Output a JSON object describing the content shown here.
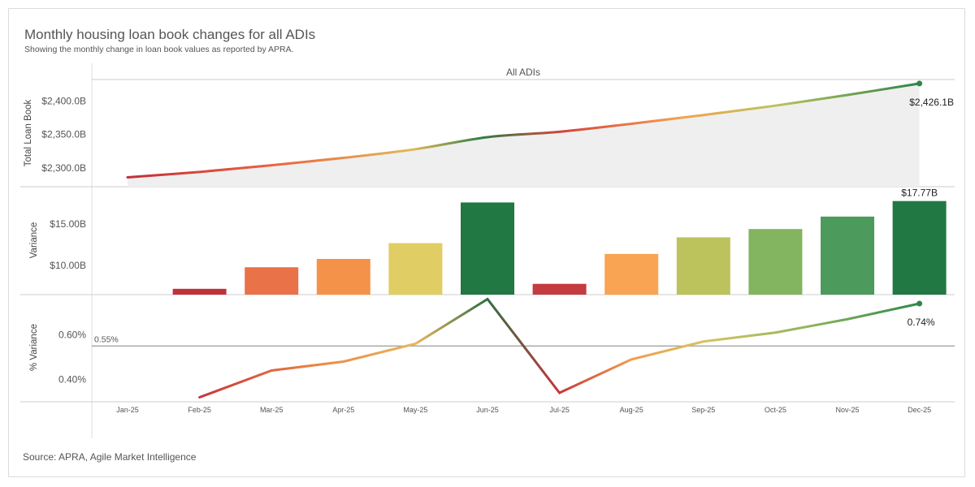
{
  "title": "Monthly housing loan book changes for all ADIs",
  "subtitle": "Showing the monthly change in loan book values as reported by APRA.",
  "source": "Source: APRA, Agile Market Intelligence",
  "chart_data": {
    "type": "line",
    "facet_header": "All ADIs",
    "categories": [
      "Jan-25",
      "Feb-25",
      "Mar-25",
      "Apr-25",
      "May-25",
      "Jun-25",
      "Jul-25",
      "Aug-25",
      "Sep-25",
      "Oct-25",
      "Nov-25",
      "Dec-25"
    ],
    "panels": [
      {
        "id": "total",
        "type": "area",
        "ylabel": "Total Loan Book",
        "ylim": [
          2272,
          2432
        ],
        "yticks": [
          2300,
          2350,
          2400
        ],
        "ytick_labels": [
          "$2,300.0B",
          "$2,350.0B",
          "$2,400.0B"
        ],
        "values": [
          2286,
          2294,
          2304,
          2315,
          2328,
          2346,
          2354,
          2366,
          2379,
          2393,
          2409,
          2426.1
        ],
        "end_label": "$2,426.1B"
      },
      {
        "id": "variance",
        "type": "bar",
        "ylabel": "Variance",
        "ylim": [
          6.5,
          19.5
        ],
        "yticks": [
          10,
          15
        ],
        "ytick_labels": [
          "$10.00B",
          "$15.00B"
        ],
        "values": [
          null,
          7.2,
          9.8,
          10.8,
          12.7,
          17.6,
          7.8,
          11.4,
          13.4,
          14.4,
          15.9,
          17.77
        ],
        "colors": [
          null,
          "#c1313c",
          "#ea7249",
          "#f5924a",
          "#e0cd63",
          "#217842",
          "#c53b3f",
          "#f9a452",
          "#bcc35d",
          "#83b45f",
          "#4c9a5c",
          "#217842"
        ],
        "end_label": "$17.77B"
      },
      {
        "id": "pct",
        "type": "line",
        "ylabel": "% Variance",
        "ylim": [
          0.3,
          0.78
        ],
        "yticks": [
          0.4,
          0.6
        ],
        "ytick_labels": [
          "0.40%",
          "0.60%"
        ],
        "values": [
          null,
          0.32,
          0.44,
          0.48,
          0.56,
          0.76,
          0.34,
          0.49,
          0.57,
          0.61,
          0.67,
          0.74
        ],
        "reference_line": 0.55,
        "reference_label": "0.55%",
        "end_label": "0.74%"
      }
    ]
  }
}
